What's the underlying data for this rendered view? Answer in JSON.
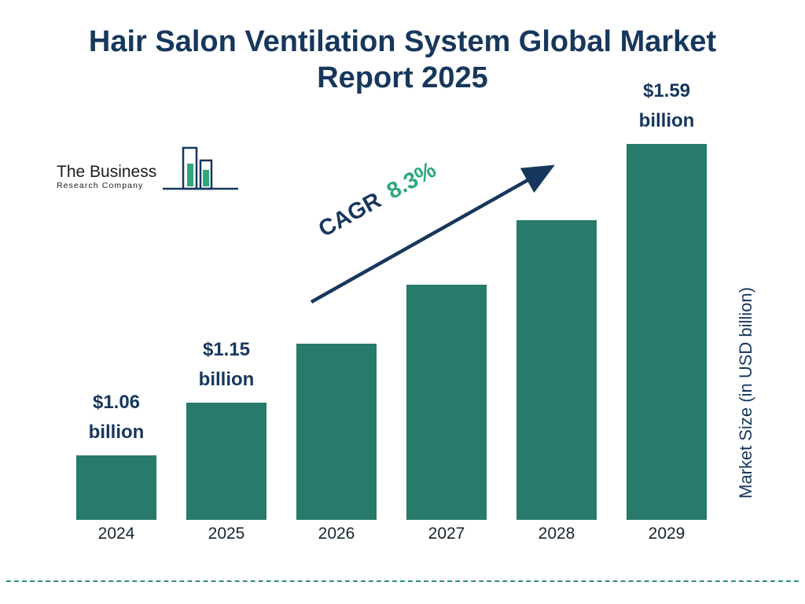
{
  "title": "Hair Salon Ventilation System Global Market Report 2025",
  "logo": {
    "line1": "The Business",
    "line2": "Research Company"
  },
  "cagr": {
    "label": "CAGR",
    "value": "8.3%"
  },
  "colors": {
    "bar_teal": "#287a6b",
    "title_navy": "#17375c",
    "accent_green": "#2ea87c",
    "dash_teal": "#2f8b82"
  },
  "chart_data": {
    "type": "bar",
    "title": "Hair Salon Ventilation System Global Market Report 2025",
    "categories": [
      "2024",
      "2025",
      "2026",
      "2027",
      "2028",
      "2029"
    ],
    "values": [
      1.06,
      1.15,
      1.25,
      1.35,
      1.46,
      1.59
    ],
    "value_labels": [
      {
        "line1": "$1.06",
        "line2": "billion"
      },
      {
        "line1": "$1.15",
        "line2": "billion"
      },
      null,
      null,
      null,
      {
        "line1": "$1.59",
        "line2": "billion"
      }
    ],
    "xlabel": "",
    "ylabel": "Market Size (in USD billion)",
    "ylim": [
      0,
      1.72
    ],
    "grid": false,
    "legend": "none",
    "annotation": "CAGR 8.3%"
  }
}
